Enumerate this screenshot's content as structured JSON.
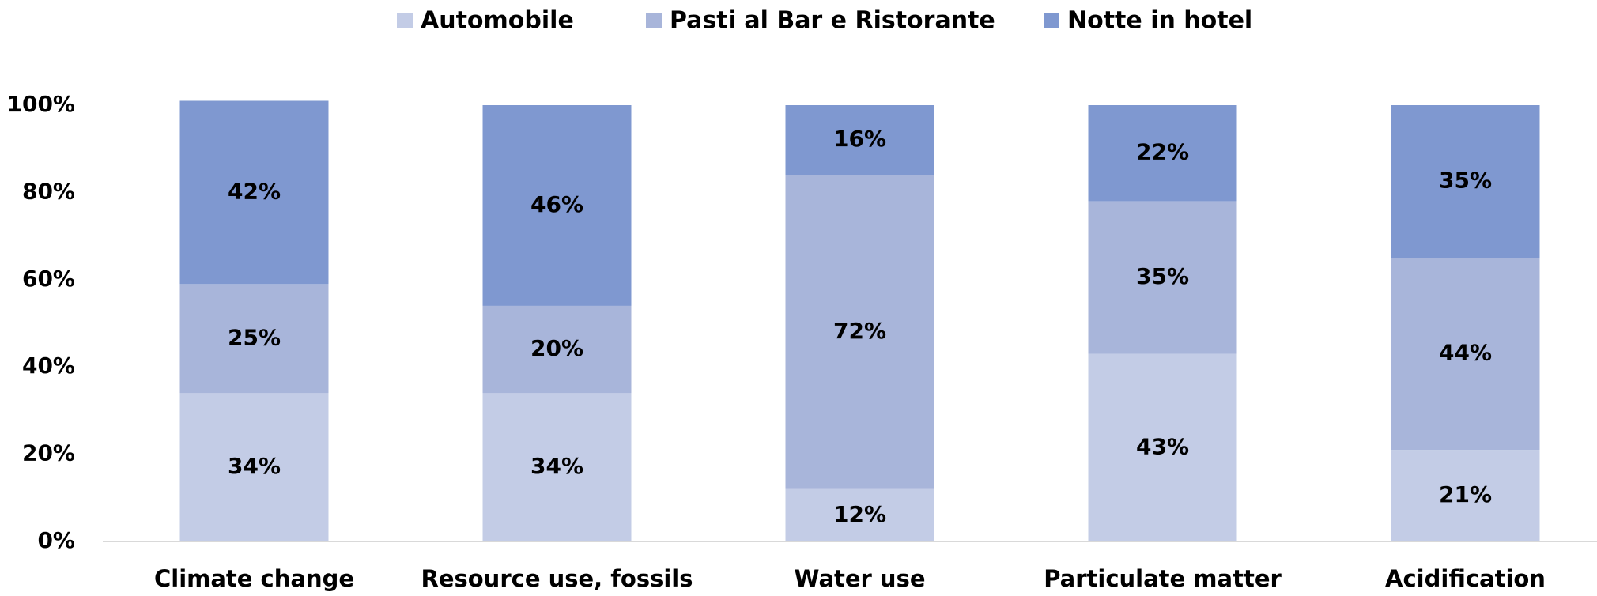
{
  "chart_data": {
    "type": "stacked-bar",
    "categories": [
      "Climate change",
      "Resource use, fossils",
      "Water use",
      "Particulate matter",
      "Acidification"
    ],
    "series": [
      {
        "name": "Automobile",
        "color": "#c3cce6",
        "values": [
          34,
          34,
          12,
          43,
          21
        ],
        "value_labels": [
          "34%",
          "34%",
          "12%",
          "43%",
          "21%"
        ]
      },
      {
        "name": "Pasti al Bar e Ristorante",
        "color": "#a8b5da",
        "values": [
          25,
          20,
          72,
          35,
          44
        ],
        "value_labels": [
          "25%",
          "20%",
          "72%",
          "35%",
          "44%"
        ]
      },
      {
        "name": "Notte in hotel",
        "color": "#7f98d0",
        "values": [
          42,
          46,
          16,
          22,
          35
        ],
        "value_labels": [
          "42%",
          "46%",
          "16%",
          "22%",
          "35%"
        ]
      }
    ],
    "ylim": [
      0,
      100
    ],
    "yticks": [
      {
        "value": 0,
        "label": "0%"
      },
      {
        "value": 20,
        "label": "20%"
      },
      {
        "value": 40,
        "label": "40%"
      },
      {
        "value": 60,
        "label": "60%"
      },
      {
        "value": 80,
        "label": "80%"
      },
      {
        "value": 100,
        "label": "100%"
      }
    ],
    "legend": "top"
  }
}
